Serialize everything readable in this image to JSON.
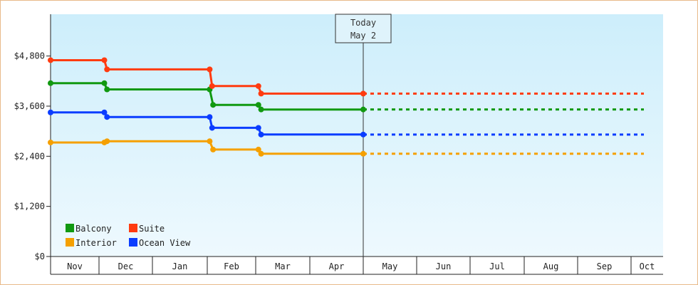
{
  "chart_data": {
    "type": "line",
    "title": "",
    "xlabel": "",
    "ylabel": "",
    "ylim": [
      0,
      5800
    ],
    "yticks": [
      {
        "value": 0,
        "label": "$0"
      },
      {
        "value": 1200,
        "label": "$1,200"
      },
      {
        "value": 2400,
        "label": "$2,400"
      },
      {
        "value": 3600,
        "label": "$3,600"
      },
      {
        "value": 4800,
        "label": "$4,800"
      }
    ],
    "x_months": [
      "Nov",
      "Dec",
      "Jan",
      "Feb",
      "Mar",
      "Apr",
      "May",
      "Jun",
      "Jul",
      "Aug",
      "Sep",
      "Oct"
    ],
    "today": {
      "line1": "Today",
      "line2": "May 2",
      "x": 6.0
    },
    "grid": false,
    "legend_position": "bottom-left",
    "series": [
      {
        "name": "Balcony",
        "color": "#119911",
        "points": [
          [
            0.0,
            4150
          ],
          [
            1.1,
            4150
          ],
          [
            1.15,
            4000
          ],
          [
            3.05,
            4000
          ],
          [
            3.12,
            3630
          ],
          [
            4.05,
            3630
          ],
          [
            4.1,
            3520
          ],
          [
            6.0,
            3520
          ]
        ],
        "projection": [
          [
            6.0,
            3520
          ],
          [
            11.4,
            3520
          ]
        ]
      },
      {
        "name": "Suite",
        "color": "#ff3b10",
        "points": [
          [
            0.0,
            4700
          ],
          [
            1.1,
            4700
          ],
          [
            1.15,
            4480
          ],
          [
            3.05,
            4480
          ],
          [
            3.1,
            4080
          ],
          [
            4.05,
            4080
          ],
          [
            4.1,
            3900
          ],
          [
            6.0,
            3900
          ]
        ],
        "projection": [
          [
            6.0,
            3900
          ],
          [
            11.4,
            3900
          ]
        ]
      },
      {
        "name": "Interior",
        "color": "#f5a000",
        "points": [
          [
            0.0,
            2730
          ],
          [
            1.1,
            2730
          ],
          [
            1.15,
            2760
          ],
          [
            3.05,
            2760
          ],
          [
            3.12,
            2560
          ],
          [
            4.05,
            2560
          ],
          [
            4.1,
            2460
          ],
          [
            6.0,
            2460
          ]
        ],
        "projection": [
          [
            6.0,
            2460
          ],
          [
            11.4,
            2460
          ]
        ]
      },
      {
        "name": "Ocean View",
        "color": "#0b3dff",
        "points": [
          [
            0.0,
            3450
          ],
          [
            1.1,
            3450
          ],
          [
            1.15,
            3340
          ],
          [
            3.05,
            3340
          ],
          [
            3.1,
            3080
          ],
          [
            4.05,
            3080
          ],
          [
            4.1,
            2920
          ],
          [
            6.0,
            2920
          ]
        ],
        "projection": [
          [
            6.0,
            2920
          ],
          [
            11.4,
            2920
          ]
        ]
      }
    ]
  }
}
